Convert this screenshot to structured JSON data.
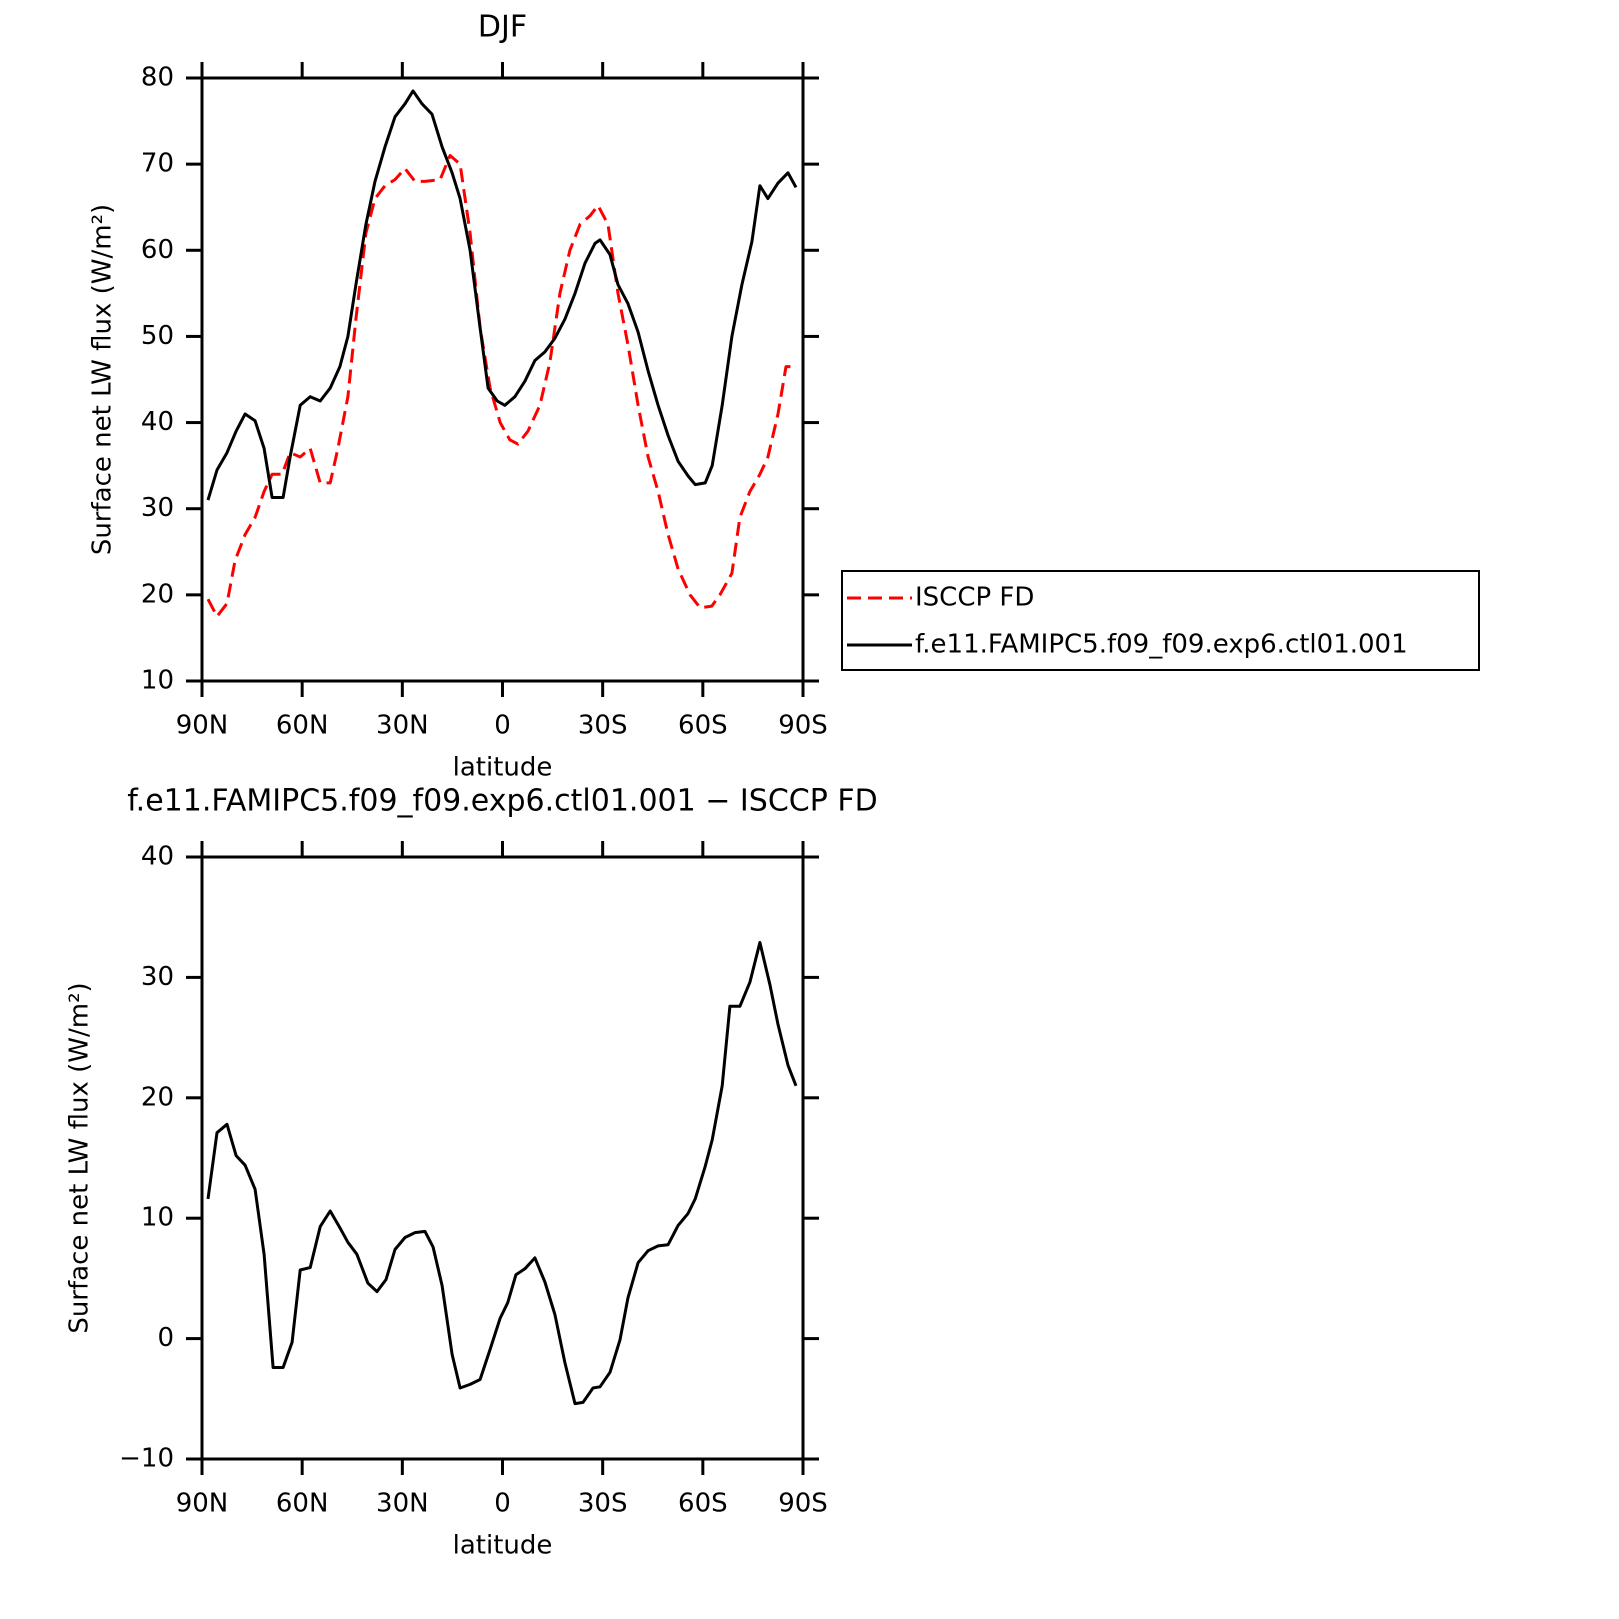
{
  "chart_data": [
    {
      "type": "line",
      "title": "DJF",
      "xlabel": "latitude",
      "ylabel": "Surface net LW flux (W/m²)",
      "xlim": [
        90,
        -90
      ],
      "ylim": [
        10,
        80
      ],
      "xticks": [
        {
          "value": 90,
          "label": "90N"
        },
        {
          "value": 60,
          "label": "60N"
        },
        {
          "value": 30,
          "label": "30N"
        },
        0,
        {
          "value": -30,
          "label": "30S"
        },
        {
          "value": -60,
          "label": "60S"
        },
        {
          "value": -90,
          "label": "90S"
        }
      ],
      "yticks": [
        10,
        20,
        30,
        40,
        50,
        60,
        70,
        80
      ],
      "legend": "right",
      "series": [
        {
          "name": "ISCCP FD",
          "color": "#ff0000",
          "dashed": true,
          "x": [
            88.2,
            85.5,
            82.5,
            80.1,
            77.1,
            74.1,
            71.4,
            69.0,
            66.0,
            63.6,
            60.6,
            57.6,
            54.6,
            51.6,
            49.3,
            46.3,
            43.9,
            40.9,
            38.2,
            35.2,
            32.2,
            29.2,
            26.2,
            23.2,
            18.7,
            15.7,
            12.7,
            9.7,
            6.7,
            3.7,
            0.7,
            -2.2,
            -4.6,
            -7.6,
            -11.2,
            -14.2,
            -17.2,
            -20.2,
            -23.2,
            -26.2,
            -28.6,
            -31.6,
            -34.6,
            -37.6,
            -40.6,
            -43.6,
            -46.6,
            -49.6,
            -52.6,
            -56.2,
            -59.2,
            -62.7,
            -65.1,
            -68.7,
            -71.1,
            -74.1,
            -77.1,
            -79.5,
            -82.5,
            -84.9,
            -87.9
          ],
          "values": [
            19.5,
            17.5,
            19,
            24,
            27,
            29,
            32,
            34,
            34,
            36.5,
            36,
            37,
            33,
            33,
            37,
            43,
            52,
            62,
            66,
            67.5,
            68.2,
            69.5,
            68,
            68,
            68.2,
            71,
            70,
            62,
            51,
            44,
            40,
            38,
            37.5,
            39,
            42,
            47,
            55,
            60,
            63,
            64,
            65.2,
            63,
            55,
            49,
            42,
            36,
            32,
            27,
            23,
            20,
            18.5,
            18.7,
            20,
            22.5,
            29,
            32,
            34,
            36,
            41,
            46.5,
            46.5
          ]
        },
        {
          "name": "f.e11.FAMIPC5.f09_f09.exp6.ctl01.001",
          "color": "#000000",
          "dashed": false,
          "x": [
            88.2,
            85.5,
            82.5,
            79.8,
            77.1,
            74.1,
            71.4,
            69.0,
            65.7,
            63.6,
            60.6,
            57.6,
            54.6,
            51.6,
            48.7,
            46.3,
            43.9,
            40.9,
            38.2,
            35.2,
            32.2,
            29.2,
            26.8,
            24.1,
            21.1,
            18.1,
            15.1,
            12.7,
            9.7,
            6.7,
            4.3,
            1.6,
            -0.7,
            -3.7,
            -6.7,
            -9.7,
            -12.7,
            -15.7,
            -18.7,
            -21.7,
            -24.7,
            -27.7,
            -29.2,
            -32.2,
            -34.6,
            -37.6,
            -40.6,
            -43.6,
            -46.6,
            -49.6,
            -52.6,
            -55.6,
            -57.7,
            -60.7,
            -62.8,
            -65.8,
            -68.7,
            -71.7,
            -74.7,
            -77.1,
            -79.5,
            -82.5,
            -85.5,
            -87.9
          ],
          "values": [
            31,
            34.5,
            36.5,
            39,
            41,
            40.2,
            37,
            31.3,
            31.3,
            36,
            42,
            43,
            42.5,
            44,
            46.5,
            50,
            56,
            63,
            68,
            72,
            75.5,
            77,
            78.5,
            77,
            75.8,
            72,
            69,
            66,
            60,
            51,
            44,
            42.5,
            42,
            43,
            44.8,
            47.2,
            48.2,
            49.8,
            52,
            55,
            58.5,
            60.8,
            61.2,
            59.5,
            56,
            53.8,
            50.5,
            46,
            42,
            38.5,
            35.5,
            33.8,
            32.8,
            33,
            35,
            42,
            50,
            56,
            61,
            67.5,
            66,
            67.8,
            69,
            67.3
          ]
        }
      ]
    },
    {
      "type": "line",
      "title": "f.e11.FAMIPC5.f09_f09.exp6.ctl01.001 − ISCCP FD",
      "xlabel": "latitude",
      "ylabel": "Surface net LW flux (W/m²)",
      "xlim": [
        90,
        -90
      ],
      "ylim": [
        -10,
        40
      ],
      "xticks": [
        {
          "value": 90,
          "label": "90N"
        },
        {
          "value": 60,
          "label": "60N"
        },
        {
          "value": 30,
          "label": "30N"
        },
        0,
        {
          "value": -30,
          "label": "30S"
        },
        {
          "value": -60,
          "label": "60S"
        },
        {
          "value": -90,
          "label": "90S"
        }
      ],
      "yticks": [
        {
          "value": -10,
          "label": "−10"
        },
        0,
        10,
        20,
        30,
        40
      ],
      "series": [
        {
          "color": "#000000",
          "dashed": false,
          "x": [
            88.2,
            85.5,
            82.5,
            79.8,
            77.1,
            74.1,
            71.4,
            68.7,
            65.7,
            63.0,
            60.6,
            57.6,
            54.6,
            51.6,
            48.7,
            46.3,
            43.6,
            40.3,
            37.6,
            34.9,
            32.2,
            29.2,
            26.2,
            23.2,
            20.8,
            18.1,
            15.1,
            12.7,
            9.7,
            6.7,
            3.7,
            0.7,
            -1.6,
            -4.0,
            -6.7,
            -9.7,
            -12.7,
            -15.7,
            -18.7,
            -21.7,
            -24.1,
            -27.1,
            -29.2,
            -32.2,
            -35.2,
            -37.6,
            -40.6,
            -43.6,
            -46.6,
            -49.6,
            -52.6,
            -55.6,
            -57.7,
            -60.7,
            -62.8,
            -65.8,
            -68.1,
            -71.1,
            -74.1,
            -77.1,
            -80.1,
            -82.5,
            -85.5,
            -87.9
          ],
          "values": [
            11.6,
            17.1,
            17.8,
            15.2,
            14.4,
            12.4,
            7,
            -2.4,
            -2.4,
            -0.3,
            5.7,
            5.9,
            9.3,
            10.6,
            9.2,
            8,
            7,
            4.6,
            3.9,
            4.9,
            7.4,
            8.4,
            8.8,
            8.9,
            7.6,
            4.4,
            -1.3,
            -4.1,
            -3.8,
            -3.4,
            -0.9,
            1.7,
            3,
            5.3,
            5.8,
            6.7,
            4.7,
            2,
            -2,
            -5.4,
            -5.3,
            -4.1,
            -4,
            -2.8,
            -0.1,
            3.4,
            6.3,
            7.3,
            7.7,
            7.8,
            9.4,
            10.4,
            11.6,
            14.3,
            16.5,
            21,
            27.6,
            27.6,
            29.6,
            32.9,
            29.4,
            26.1,
            22.7,
            21
          ]
        }
      ]
    }
  ]
}
